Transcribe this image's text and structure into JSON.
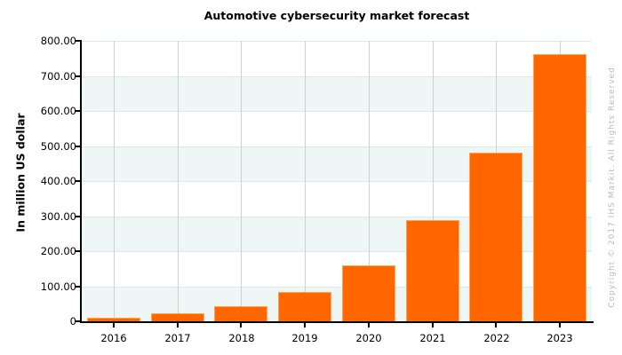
{
  "title": "Automotive cybersecurity market forecast",
  "watermark": "Copyright © 2017 IHS Markit. All Rights Reserved",
  "chart_data": {
    "type": "bar",
    "title": "Automotive cybersecurity market forecast",
    "xlabel": "",
    "ylabel": "In million US dollar",
    "categories": [
      "2016",
      "2017",
      "2018",
      "2019",
      "2020",
      "2021",
      "2022",
      "2023"
    ],
    "values": [
      11,
      22,
      42,
      84,
      160,
      289,
      481,
      762
    ],
    "ylim": [
      0,
      800
    ],
    "ytick_step": 100,
    "ytick_labels": [
      "0",
      "100.00",
      "200.00",
      "300.00",
      "400.00",
      "500.00",
      "600.00",
      "700.00",
      "800.00"
    ],
    "grid": true,
    "legend": false,
    "band_pattern": "alternating horizontal bands tinted on 0-100, 200-300, 400-500, 600-700",
    "colors": {
      "bar_fill": "#ff6600",
      "bar_border": "#ffa64d",
      "band_tint": "#eff6f6",
      "hgrid": "#dde8ea",
      "vgrid": "#c9d2d4",
      "axis": "#000000",
      "title_text": "#000000",
      "watermark_text": "#b4bbbd"
    }
  }
}
